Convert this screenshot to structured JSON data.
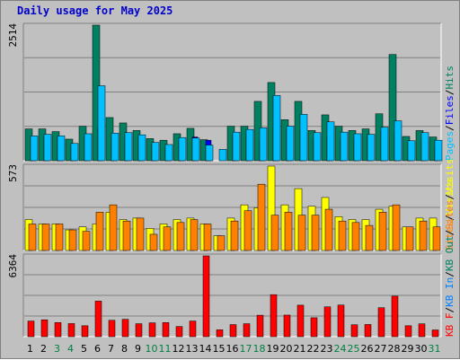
{
  "title": "Daily usage for May 2025",
  "colors": {
    "hits": "#008060",
    "files": "#0000ff",
    "pages": "#00c0ff",
    "visits": "#ffff00",
    "sites": "#ff8000",
    "kbin": "#0080ff",
    "kbout": "#ff0000",
    "weekend_day": "#008040",
    "weekday": "#000000"
  },
  "chart_data": [
    {
      "type": "bar",
      "panel": "hits-files-pages",
      "max_label": "2514",
      "ylim": [
        0,
        2514
      ],
      "legend": [
        {
          "text": "Pages",
          "color_key": "pages"
        },
        {
          "text": "/",
          "color_key": "weekday"
        },
        {
          "text": "Files",
          "color_key": "files"
        },
        {
          "text": "/",
          "color_key": "weekday"
        },
        {
          "text": "Hits",
          "color_key": "hits"
        }
      ],
      "series": [
        {
          "name": "Hits",
          "color_key": "hits",
          "values": [
            590,
            590,
            540,
            400,
            640,
            2514,
            800,
            700,
            560,
            410,
            380,
            500,
            600,
            390,
            0,
            640,
            640,
            1100,
            1450,
            760,
            1100,
            560,
            850,
            640,
            560,
            590,
            870,
            1970,
            450,
            560,
            440
          ]
        },
        {
          "name": "Files",
          "color_key": "files",
          "values": [
            440,
            440,
            440,
            280,
            440,
            620,
            440,
            440,
            440,
            300,
            250,
            350,
            440,
            380,
            0,
            480,
            480,
            380,
            600,
            580,
            590,
            380,
            460,
            380,
            400,
            480,
            540,
            500,
            300,
            370,
            280
          ]
        },
        {
          "name": "Pages",
          "color_key": "pages",
          "values": [
            460,
            490,
            460,
            320,
            500,
            1390,
            510,
            520,
            480,
            340,
            300,
            430,
            420,
            290,
            210,
            530,
            580,
            610,
            1210,
            640,
            860,
            520,
            720,
            530,
            500,
            490,
            620,
            740,
            370,
            520,
            380
          ]
        }
      ]
    },
    {
      "type": "bar",
      "panel": "visits-sites",
      "max_label": "573",
      "ylim": [
        0,
        573
      ],
      "legend": [
        {
          "text": "Sites",
          "color_key": "sites"
        },
        {
          "text": "/",
          "color_key": "weekday"
        },
        {
          "text": "Visits",
          "color_key": "visits"
        }
      ],
      "series": [
        {
          "name": "Visits",
          "color_key": "visits",
          "values": [
            210,
            180,
            180,
            140,
            160,
            180,
            260,
            210,
            220,
            150,
            180,
            210,
            220,
            180,
            100,
            220,
            310,
            290,
            573,
            310,
            420,
            300,
            360,
            230,
            210,
            210,
            280,
            300,
            160,
            220,
            220
          ]
        },
        {
          "name": "Sites",
          "color_key": "sites",
          "values": [
            180,
            180,
            180,
            140,
            130,
            260,
            310,
            200,
            220,
            110,
            160,
            190,
            210,
            180,
            100,
            200,
            270,
            450,
            240,
            260,
            240,
            240,
            280,
            200,
            190,
            170,
            260,
            310,
            160,
            200,
            160
          ]
        }
      ]
    },
    {
      "type": "bar",
      "panel": "kbin-kbout",
      "max_label": "6364",
      "ylim": [
        0,
        6364
      ],
      "legend": [
        {
          "text": "KB F",
          "color_key": "kbout"
        },
        {
          "text": "/",
          "color_key": "weekday"
        },
        {
          "text": "KB In",
          "color_key": "kbin"
        },
        {
          "text": "/",
          "color_key": "weekday"
        },
        {
          "text": "KB Out",
          "color_key": "hits"
        },
        {
          "text": "/",
          "color_key": "weekday"
        },
        {
          "text": "Sites",
          "color_key": "sites"
        },
        {
          "text": "/",
          "color_key": "weekday"
        },
        {
          "text": "Visits",
          "color_key": "visits"
        }
      ],
      "series": [
        {
          "name": "KB F",
          "color_key": "kbout",
          "values": [
            1230,
            1330,
            1110,
            1030,
            860,
            2800,
            1290,
            1370,
            1020,
            1090,
            1110,
            800,
            1230,
            6364,
            540,
            950,
            1020,
            1690,
            3310,
            1700,
            2480,
            1490,
            2350,
            2490,
            940,
            960,
            2280,
            3190,
            860,
            1010,
            530
          ]
        }
      ],
      "days": [
        "1",
        "2",
        "3",
        "4",
        "5",
        "6",
        "7",
        "8",
        "9",
        "10",
        "11",
        "12",
        "13",
        "14",
        "15",
        "16",
        "17",
        "18",
        "19",
        "20",
        "21",
        "22",
        "23",
        "24",
        "25",
        "26",
        "27",
        "28",
        "29",
        "30",
        "31"
      ],
      "weekend_days": [
        "3",
        "4",
        "10",
        "11",
        "17",
        "18",
        "24",
        "25",
        "31"
      ]
    }
  ]
}
